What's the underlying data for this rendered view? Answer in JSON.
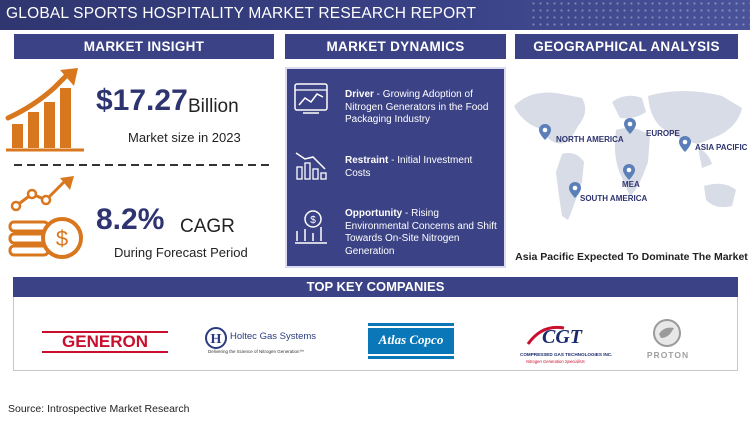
{
  "header": {
    "title": "GLOBAL SPORTS HOSPITALITY MARKET RESEARCH REPORT"
  },
  "sections": {
    "insight": "MARKET INSIGHT",
    "dynamics": "MARKET DYNAMICS",
    "geo": "GEOGRAPHICAL ANALYSIS",
    "companies": "TOP KEY COMPANIES"
  },
  "insight": {
    "market_value": "$17.27",
    "market_unit": "Billion",
    "market_caption": "Market size in 2023",
    "cagr_value": "8.2%",
    "cagr_unit": "CAGR",
    "cagr_caption": "During Forecast Period"
  },
  "dynamics": [
    {
      "label": "Driver",
      "text": "Growing Adoption of Nitrogen Generators in the Food Packaging Industry",
      "icon": "dashboard-chart-icon"
    },
    {
      "label": "Restraint",
      "text": "Initial Investment Costs",
      "icon": "declining-chart-icon"
    },
    {
      "label": "Opportunity",
      "text": "Rising Environmental Concerns and Shift Towards On-Site Nitrogen Generation",
      "icon": "growth-coin-icon"
    }
  ],
  "geo": {
    "regions": [
      "NORTH AMERICA",
      "EUROPE",
      "ASIA PACIFIC",
      "MEA",
      "SOUTH AMERICA"
    ],
    "caption": "Asia Pacific Expected To Dominate The Market"
  },
  "companies": {
    "generon": "GENERON",
    "holtec_name": "Holtec Gas Systems",
    "holtec_tagline": "Delivering the Science of Nitrogen Generation™",
    "atlas": "Atlas Copco",
    "cgt_logo": "CGT",
    "cgt_name": "COMPRESSED GAS TECHNOLOGIES INC.",
    "cgt_tagline": "Nitrogen Generation Specialists",
    "proton": "PROTON"
  },
  "source": "Source: Introspective Market Research",
  "chart_data": {
    "type": "table",
    "title": "GLOBAL SPORTS HOSPITALITY MARKET RESEARCH REPORT",
    "market_size_2023": "$17.27 Billion",
    "cagr": "8.2%",
    "dominant_region": "Asia Pacific",
    "regions": [
      "North America",
      "Europe",
      "Asia Pacific",
      "MEA",
      "South America"
    ]
  },
  "colors": {
    "navy": "#3b4285",
    "orange": "#d9771e",
    "dark_text": "#2e3470"
  }
}
